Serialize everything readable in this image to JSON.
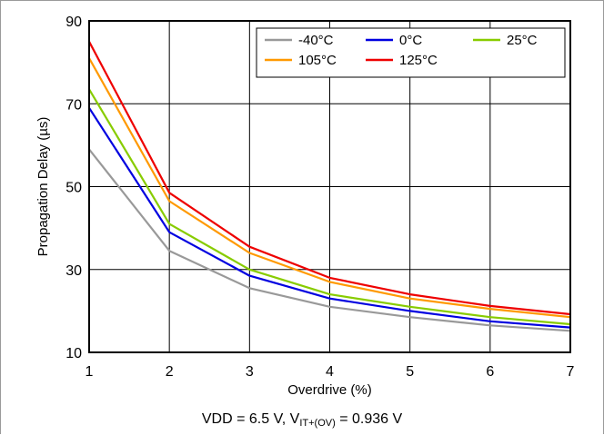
{
  "chart_data": {
    "type": "line",
    "xlabel": "Overdrive (%)",
    "ylabel": "Propagation Delay (µs)",
    "xlim": [
      1,
      7
    ],
    "ylim": [
      10,
      90
    ],
    "x_ticks": [
      1,
      2,
      3,
      4,
      5,
      6,
      7
    ],
    "y_ticks": [
      10,
      30,
      50,
      70,
      90
    ],
    "grid": true,
    "legend_position": "top-right",
    "x": [
      1,
      2,
      3,
      4,
      5,
      6,
      7
    ],
    "series": [
      {
        "name": "-40°C",
        "color": "#999999",
        "values": [
          59,
          34.5,
          25.5,
          21,
          18.5,
          16.5,
          15.2
        ]
      },
      {
        "name": "0°C",
        "color": "#0000e0",
        "values": [
          69,
          39,
          28.5,
          23,
          20,
          17.5,
          16
        ]
      },
      {
        "name": "25°C",
        "color": "#88cc00",
        "values": [
          73.5,
          41,
          30,
          24,
          21,
          18.5,
          16.8
        ]
      },
      {
        "name": "105°C",
        "color": "#ff9900",
        "values": [
          81,
          46.5,
          34,
          27,
          23,
          20.5,
          18.5
        ]
      },
      {
        "name": "125°C",
        "color": "#ee0000",
        "values": [
          85,
          48.5,
          35.5,
          28,
          24,
          21.2,
          19.2
        ]
      }
    ]
  },
  "caption": {
    "main": "VDD = 6.5 V, V",
    "subscript": "IT+(OV)",
    "tail": " = 0.936 V"
  }
}
